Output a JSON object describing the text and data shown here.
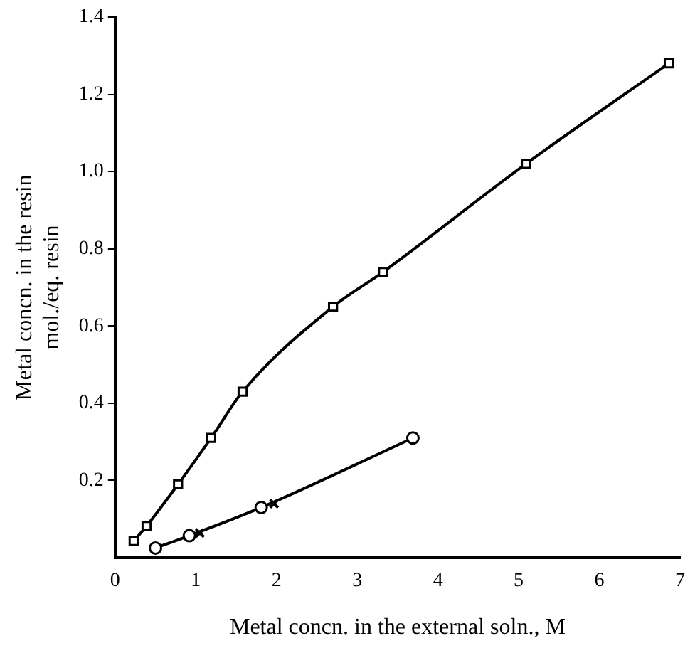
{
  "chart_data": {
    "type": "line",
    "xlabel": "Metal concn. in the external soln., M",
    "ylabel": "Metal concn. in the resin\nmol./eq. resin",
    "xlim": [
      0,
      7
    ],
    "xticks": [
      0,
      1,
      2,
      3,
      4,
      5,
      6,
      7
    ],
    "ylim": [
      0,
      1.4
    ],
    "yticks": [
      {
        "value": 0.2,
        "label": "0.2"
      },
      {
        "value": 0.4,
        "label": "0.4"
      },
      {
        "value": 0.6,
        "label": "0.6"
      },
      {
        "value": 0.8,
        "label": "0.8"
      },
      {
        "value": 1.0,
        "label": "1.0"
      },
      {
        "value": 1.2,
        "label": "1.2"
      },
      {
        "value": 1.4,
        "label": "1.4"
      }
    ],
    "grid": false,
    "legend": false,
    "line_style": "solid",
    "series": [
      {
        "type": "line",
        "marker": "square",
        "color": "#000000",
        "x": [
          0.23,
          0.39,
          0.78,
          1.19,
          1.58,
          2.7,
          3.32,
          5.09,
          6.86
        ],
        "values": [
          0.043,
          0.082,
          0.19,
          0.31,
          0.43,
          0.65,
          0.74,
          1.02,
          1.28
        ]
      },
      {
        "type": "line",
        "marker": "circle",
        "color": "#000000",
        "x": [
          0.5,
          0.92,
          1.81,
          3.69
        ],
        "values": [
          0.025,
          0.057,
          0.13,
          0.31
        ]
      },
      {
        "type": "scatter",
        "marker": "cross",
        "color": "#000000",
        "x": [
          1.05,
          1.97
        ],
        "values": [
          0.064,
          0.14
        ]
      }
    ]
  }
}
